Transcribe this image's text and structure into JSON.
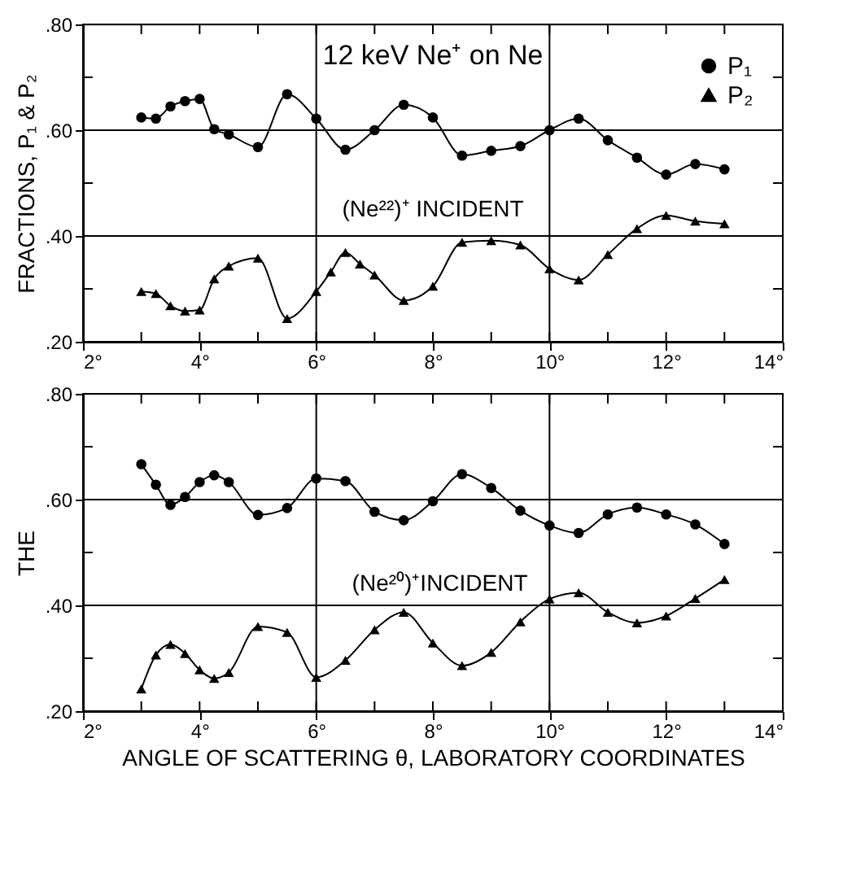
{
  "chart_data": [
    {
      "type": "line",
      "ylabel": "FRACTIONS, P₁ & P₂",
      "annotations": [
        "12 keV Ne⁺ on Ne",
        "(Ne²²)⁺ INCIDENT"
      ],
      "series": [
        {
          "name": "P₁",
          "color": "#000000",
          "marker": "circle",
          "x": [
            3,
            3.25,
            3.5,
            3.75,
            4,
            4.25,
            4.5,
            5,
            5.5,
            6,
            6.5,
            7,
            7.5,
            8,
            8.5,
            9,
            9.5,
            10,
            10.5,
            11,
            11.5,
            12,
            12.5,
            13
          ],
          "values": [
            0.624,
            0.622,
            0.645,
            0.655,
            0.659,
            0.602,
            0.592,
            0.568,
            0.668,
            0.622,
            0.563,
            0.6,
            0.648,
            0.624,
            0.552,
            0.561,
            0.57,
            0.6,
            0.622,
            0.581,
            0.548,
            0.516,
            0.536,
            0.526
          ]
        },
        {
          "name": "P₂",
          "color": "#000000",
          "marker": "triangle",
          "x": [
            3,
            3.25,
            3.5,
            3.75,
            4,
            4.25,
            4.5,
            5,
            5.5,
            6,
            6.25,
            6.5,
            6.75,
            7,
            7.5,
            8,
            8.5,
            9,
            9.5,
            10,
            10.5,
            11,
            11.5,
            12,
            12.5,
            13
          ],
          "values": [
            0.295,
            0.291,
            0.268,
            0.258,
            0.26,
            0.319,
            0.343,
            0.358,
            0.244,
            0.295,
            0.332,
            0.369,
            0.347,
            0.326,
            0.278,
            0.305,
            0.388,
            0.391,
            0.383,
            0.338,
            0.317,
            0.365,
            0.414,
            0.439,
            0.428,
            0.423
          ]
        }
      ],
      "xlim": [
        2,
        14
      ],
      "ylim": [
        0.2,
        0.8
      ],
      "xticks": [
        {
          "value": 2,
          "label": "2°"
        },
        {
          "value": 3,
          "label": null
        },
        {
          "value": 4,
          "label": "4°"
        },
        {
          "value": 5,
          "label": null
        },
        {
          "value": 6,
          "label": "6°"
        },
        {
          "value": 7,
          "label": null
        },
        {
          "value": 8,
          "label": "8°"
        },
        {
          "value": 9,
          "label": null
        },
        {
          "value": 10,
          "label": "10°"
        },
        {
          "value": 11,
          "label": null
        },
        {
          "value": 12,
          "label": "12°"
        },
        {
          "value": 13,
          "label": null
        },
        {
          "value": 14,
          "label": "14°"
        }
      ],
      "yticks": [
        {
          "value": 0.2,
          "label": ".20"
        },
        {
          "value": 0.3,
          "label": null
        },
        {
          "value": 0.4,
          "label": ".40"
        },
        {
          "value": 0.5,
          "label": null
        },
        {
          "value": 0.6,
          "label": ".60"
        },
        {
          "value": 0.7,
          "label": null
        },
        {
          "value": 0.8,
          "label": ".80"
        }
      ],
      "ref_lines": [
        {
          "axis": "x",
          "value": 6
        },
        {
          "axis": "x",
          "value": 10
        },
        {
          "axis": "y",
          "value": 0.4
        },
        {
          "axis": "y",
          "value": 0.6
        }
      ],
      "legend": "top right",
      "line_style": "solid"
    },
    {
      "type": "line",
      "ylabel": "THE",
      "xlabel": "ANGLE OF SCATTERING θ, LABORATORY COORDINATES",
      "annotations": [
        "(Ne²⁰)⁺INCIDENT"
      ],
      "series": [
        {
          "name": "P₁",
          "color": "#000000",
          "marker": "circle",
          "x": [
            3,
            3.25,
            3.5,
            3.75,
            4,
            4.25,
            4.5,
            5,
            5.5,
            6,
            6.5,
            7,
            7.5,
            8,
            8.5,
            9,
            9.5,
            10,
            10.5,
            11,
            11.5,
            12,
            12.5,
            13
          ],
          "values": [
            0.667,
            0.628,
            0.59,
            0.605,
            0.633,
            0.646,
            0.633,
            0.571,
            0.584,
            0.64,
            0.635,
            0.577,
            0.561,
            0.597,
            0.648,
            0.622,
            0.579,
            0.551,
            0.537,
            0.572,
            0.585,
            0.572,
            0.553,
            0.516
          ]
        },
        {
          "name": "P₂",
          "color": "#000000",
          "marker": "triangle",
          "x": [
            3,
            3.25,
            3.5,
            3.75,
            4,
            4.25,
            4.5,
            5,
            5.5,
            6,
            6.5,
            7,
            7.5,
            8,
            8.5,
            9,
            9.5,
            10,
            10.5,
            11,
            11.5,
            12,
            12.5,
            13
          ],
          "values": [
            0.242,
            0.306,
            0.326,
            0.309,
            0.278,
            0.262,
            0.273,
            0.36,
            0.349,
            0.264,
            0.296,
            0.354,
            0.387,
            0.329,
            0.286,
            0.311,
            0.369,
            0.412,
            0.424,
            0.387,
            0.367,
            0.38,
            0.413,
            0.449
          ]
        }
      ],
      "xlim": [
        2,
        14
      ],
      "ylim": [
        0.2,
        0.8
      ],
      "xticks": [
        {
          "value": 2,
          "label": "2°"
        },
        {
          "value": 3,
          "label": null
        },
        {
          "value": 4,
          "label": "4°"
        },
        {
          "value": 5,
          "label": null
        },
        {
          "value": 6,
          "label": "6°"
        },
        {
          "value": 7,
          "label": null
        },
        {
          "value": 8,
          "label": "8°"
        },
        {
          "value": 9,
          "label": null
        },
        {
          "value": 10,
          "label": "10°"
        },
        {
          "value": 11,
          "label": null
        },
        {
          "value": 12,
          "label": "12°"
        },
        {
          "value": 13,
          "label": null
        },
        {
          "value": 14,
          "label": "14°"
        }
      ],
      "yticks": [
        {
          "value": 0.2,
          "label": ".20"
        },
        {
          "value": 0.3,
          "label": null
        },
        {
          "value": 0.4,
          "label": ".40"
        },
        {
          "value": 0.5,
          "label": null
        },
        {
          "value": 0.6,
          "label": ".60"
        },
        {
          "value": 0.7,
          "label": null
        },
        {
          "value": 0.8,
          "label": ".80"
        }
      ],
      "ref_lines": [
        {
          "axis": "x",
          "value": 6
        },
        {
          "axis": "x",
          "value": 10
        },
        {
          "axis": "y",
          "value": 0.4
        },
        {
          "axis": "y",
          "value": 0.6
        }
      ],
      "legend": "top right",
      "line_style": "solid"
    }
  ]
}
